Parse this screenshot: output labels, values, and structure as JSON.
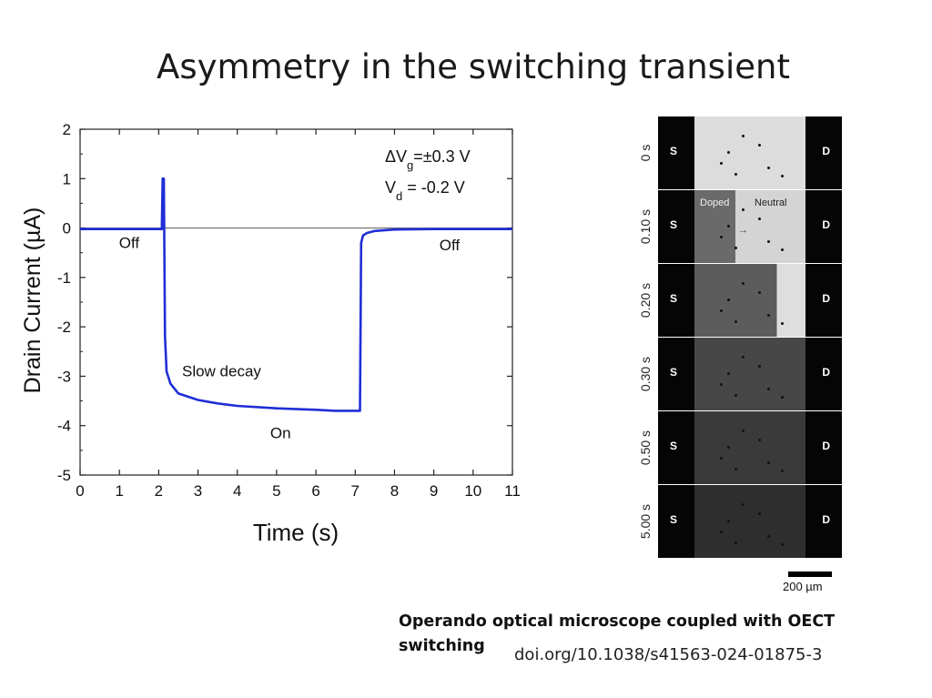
{
  "slide": {
    "title": "Asymmetry in the switching transient",
    "caption": "Operando optical microscope coupled with OECT switching",
    "doi": "doi.org/10.1038/s41563-024-01875-3"
  },
  "chart_data": {
    "type": "line",
    "title": "",
    "xlabel": "Time (s)",
    "ylabel": "Drain Current (µA)",
    "xlim": [
      0,
      11
    ],
    "ylim": [
      -5,
      2
    ],
    "x_ticks": [
      0,
      1,
      2,
      3,
      4,
      5,
      6,
      7,
      8,
      9,
      10,
      11
    ],
    "y_ticks": [
      -5,
      -4,
      -3,
      -2,
      -1,
      0,
      1,
      2
    ],
    "series": [
      {
        "color": "#1f2ed6",
        "x": [
          0,
          2.08,
          2.1,
          2.13,
          2.16,
          2.2,
          2.3,
          2.5,
          3.0,
          3.5,
          4.0,
          5.0,
          6.0,
          6.5,
          7.0,
          7.12,
          7.15,
          7.2,
          7.3,
          7.5,
          8.0,
          9.0,
          11.0
        ],
        "y": [
          -0.02,
          -0.02,
          1.0,
          1.0,
          -2.2,
          -2.9,
          -3.15,
          -3.35,
          -3.48,
          -3.55,
          -3.6,
          -3.65,
          -3.68,
          -3.7,
          -3.7,
          -3.7,
          -0.3,
          -0.15,
          -0.1,
          -0.06,
          -0.03,
          -0.02,
          -0.02
        ]
      }
    ],
    "zero_line": true,
    "annotations": [
      {
        "text": "Off",
        "x": 1.25,
        "y": -0.4
      },
      {
        "text": "Off",
        "x": 9.4,
        "y": -0.45
      },
      {
        "text": "Slow decay",
        "x": 3.6,
        "y": -3.0
      },
      {
        "text": "On",
        "x": 5.1,
        "y": -4.25
      }
    ],
    "condition_lines": [
      {
        "delta": "ΔV",
        "sub": "g",
        "rest": "=±0.3 V"
      },
      {
        "delta": "V",
        "sub": "d",
        "rest": " = -0.2 V"
      }
    ]
  },
  "micrograph": {
    "source_label": "S",
    "drain_label": "D",
    "doped_label": "Doped",
    "neutral_label": "Neutral",
    "scale_label": "200 µm",
    "frames": [
      {
        "time": "0 s",
        "front": 0.0,
        "tone": "#dcdcdc"
      },
      {
        "time": "0.10 s",
        "front": 0.37,
        "tone": "#d4d4d4"
      },
      {
        "time": "0.20 s",
        "front": 0.74,
        "tone": "#dedede"
      },
      {
        "time": "0.30 s",
        "front": 1.0,
        "tone": "#cfcfcf"
      },
      {
        "time": "0.50 s",
        "front": 1.0,
        "tone": "#cfcfcf"
      },
      {
        "time": "5.00 s",
        "front": 1.0,
        "tone": "#cfcfcf"
      }
    ],
    "doped_tones": [
      "#dcdcdc",
      "#6a6a6a",
      "#5c5c5c",
      "#474747",
      "#3a3a3a",
      "#2e2e2e"
    ]
  }
}
